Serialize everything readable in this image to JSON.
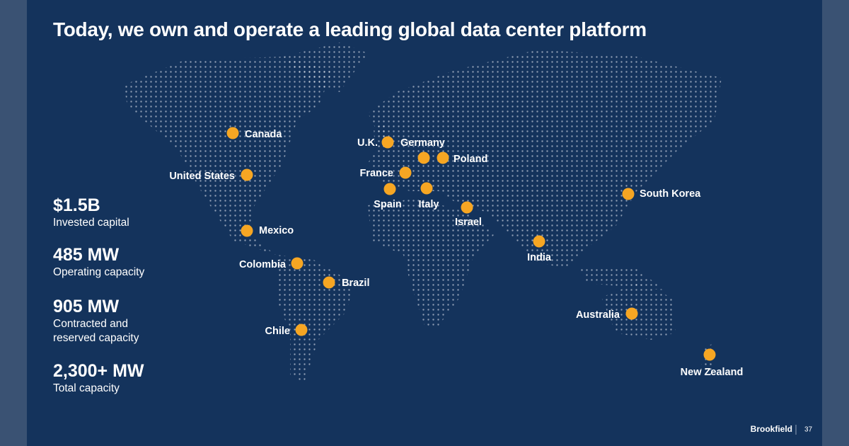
{
  "title": "Today, we own and operate a leading global data center platform",
  "stats": [
    {
      "value": "$1.5B",
      "label": "Invested capital"
    },
    {
      "value": "485 MW",
      "label": "Operating capacity"
    },
    {
      "value": "905 MW",
      "label": "Contracted and reserved capacity"
    },
    {
      "value": "2,300+ MW",
      "label": "Total capacity"
    }
  ],
  "locations": [
    "Canada",
    "United States",
    "Mexico",
    "Colombia",
    "Brazil",
    "Chile",
    "U.K.",
    "Germany",
    "Poland",
    "France",
    "Spain",
    "Italy",
    "Israel",
    "India",
    "South Korea",
    "Australia",
    "New Zealand"
  ],
  "footer": {
    "brand": "Brookfield",
    "page": "37"
  }
}
